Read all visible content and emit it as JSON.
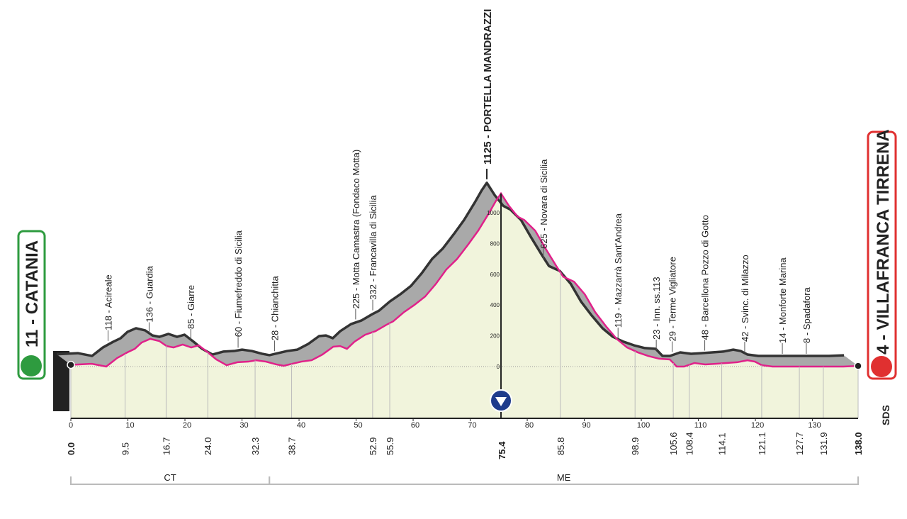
{
  "chart_data": {
    "type": "area",
    "start": "11 - CATANIA",
    "finish": "4 - VILLAFRANCA TIRRENA",
    "summit": "1125 - PORTELLA MANDRAZZI",
    "summit_km": {
      "value": 75.4,
      "label": "75.4"
    },
    "logo": "SDS",
    "x": [
      0,
      3.7,
      6.2,
      8.1,
      9.9,
      11.2,
      12.4,
      13.9,
      15.5,
      16.8,
      18,
      19.6,
      21.1,
      22.4,
      24,
      25.5,
      27.3,
      29.2,
      31.1,
      32.5,
      34.2,
      36,
      37.3,
      38.8,
      40.4,
      42.2,
      44.1,
      46,
      47.2,
      48.4,
      49.7,
      51.6,
      53.4,
      55.3,
      56.5,
      58.4,
      60.2,
      62.1,
      64,
      65.8,
      67.7,
      69.6,
      71.4,
      73.3,
      74.5,
      75.4,
      76.8,
      78.3,
      79.5,
      81.4,
      83.2,
      85.1,
      86.3,
      88.2,
      90.1,
      91.9,
      93.8,
      95.7,
      97.5,
      99.4,
      101.2,
      103.1,
      105,
      106.2,
      107.5,
      109.3,
      111.2,
      113,
      114.9,
      116.8,
      118.6,
      119.9,
      121.1,
      123,
      125.5,
      129.2,
      132.9,
      135.4,
      138
    ],
    "values": [
      11,
      18,
      0,
      55,
      92,
      115,
      156,
      180,
      166,
      133,
      124,
      143,
      124,
      138,
      92,
      46,
      9,
      28,
      32,
      41,
      32,
      14,
      5,
      18,
      32,
      41,
      78,
      129,
      133,
      115,
      161,
      207,
      230,
      271,
      294,
      354,
      400,
      455,
      538,
      630,
      699,
      791,
      883,
      998,
      1076,
      1125,
      1044,
      975,
      952,
      883,
      768,
      653,
      584,
      552,
      469,
      354,
      262,
      179,
      124,
      92,
      69,
      51,
      46,
      0,
      0,
      23,
      14,
      18,
      23,
      28,
      41,
      32,
      9,
      0,
      0,
      0,
      0,
      0,
      4
    ],
    "xlim": [
      0,
      138
    ],
    "ylim": [
      0,
      1000
    ],
    "xticks": [
      0,
      10,
      20,
      30,
      40,
      50,
      60,
      70,
      80,
      90,
      100,
      110,
      120,
      130
    ],
    "yticks": [
      0,
      200,
      400,
      600,
      800,
      1000
    ],
    "color": "#e0218a",
    "waypoints": [
      {
        "km": {
          "value": 0,
          "label": "0.0"
        }
      },
      {
        "km": 9.5,
        "label": "118 - Acireale"
      },
      {
        "km": 16.7,
        "label": "136 - Guardia"
      },
      {
        "km": {
          "value": 24,
          "label": "24.0"
        },
        "label": "85 - Giarre"
      },
      {
        "km": 32.3,
        "label": "60 - Fiumefreddo di Sicilia"
      },
      {
        "km": 38.7,
        "label": "28 - Chianchitta"
      },
      {
        "km": 52.9,
        "label": "225 - Motta Camastra (Fondaco Motta)"
      },
      {
        "km": 55.9,
        "label": "332 - Francavilla di Sicilia"
      },
      {
        "km": 85.8,
        "label": "625 - Novara di Sicilia"
      },
      {
        "km": 98.9,
        "label": "119 - Mazzarrà Sant'Andrea"
      },
      {
        "km": 105.6,
        "label": "23 - Inn. ss.113"
      },
      {
        "km": 108.4,
        "label": "29 - Terme Vigliatore"
      },
      {
        "km": 114.1,
        "label": "48 - Barcellona Pozzo di Gotto"
      },
      {
        "km": 121.1,
        "label": "42 - Svinc. di Milazzo"
      },
      {
        "km": 127.7,
        "label": "14 - Monforte Marina"
      },
      {
        "km": 131.9,
        "label": "8 - Spadafora"
      },
      {
        "km": {
          "value": 138,
          "label": "138.0"
        }
      }
    ],
    "provinces": [
      {
        "label": "CT",
        "from": 0,
        "to": 34.8
      },
      {
        "label": "ME",
        "from": 34.8,
        "to": 138
      }
    ]
  }
}
